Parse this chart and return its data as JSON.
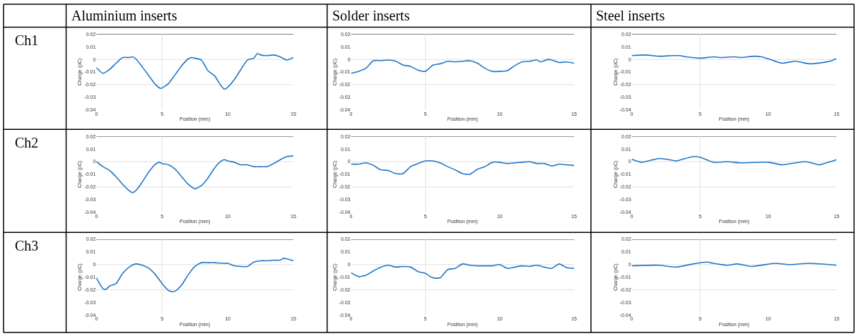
{
  "chart_data": [
    {
      "type": "line",
      "title": "Aluminium inserts",
      "annotations": [
        "Ch1"
      ],
      "xlabel": "Position (mm)",
      "ylabel": "Charge (pC)",
      "xlim": [
        0,
        15
      ],
      "ylim": [
        -0.04,
        0.02
      ],
      "xticks": [
        0,
        5,
        10,
        15
      ],
      "yticks": [
        0.02,
        0.01,
        0,
        -0.01,
        -0.02,
        -0.03,
        -0.04
      ],
      "grid": false,
      "ref_lines": [
        {
          "axis": "y",
          "value": 0.02,
          "color": "#333333"
        },
        {
          "axis": "y",
          "value": 0,
          "color": "#e0e0e0"
        },
        {
          "axis": "y",
          "value": -0.02,
          "color": "#e0e0e0"
        },
        {
          "axis": "x",
          "value": 5,
          "color": "#e0e0e0"
        }
      ],
      "series": [
        {
          "color": "#1f77c8",
          "x": [
            0,
            0.5,
            1,
            1.5,
            2,
            2.5,
            2.75,
            3,
            3.5,
            4,
            4.5,
            4.9,
            5.5,
            6,
            6.5,
            7,
            7.25,
            7.5,
            8,
            8.5,
            9,
            9.5,
            9.75,
            10,
            10.5,
            11,
            11.5,
            12,
            12.25,
            12.5,
            13,
            13.5,
            14,
            14.5,
            15
          ],
          "values": [
            -0.0065,
            -0.011,
            -0.008,
            -0.003,
            0.0015,
            0.0015,
            0.002,
            0.0005,
            -0.006,
            -0.013,
            -0.02,
            -0.023,
            -0.019,
            -0.012,
            -0.005,
            0.0005,
            0.0015,
            0.001,
            -0.0005,
            -0.009,
            -0.013,
            -0.021,
            -0.0235,
            -0.022,
            -0.016,
            -0.008,
            -0.0005,
            0.001,
            0.0045,
            0.0035,
            0.003,
            0.0035,
            0.002,
            -0.0005,
            0.0015
          ]
        }
      ]
    },
    {
      "type": "line",
      "title": "Solder inserts",
      "xlabel": "Position (mm)",
      "ylabel": "Charge (pC)",
      "xlim": [
        0,
        15
      ],
      "ylim": [
        -0.04,
        0.02
      ],
      "xticks": [
        0,
        5,
        10,
        15
      ],
      "yticks": [
        0.02,
        0.01,
        0,
        -0.01,
        -0.02,
        -0.03,
        -0.04
      ],
      "grid": false,
      "ref_lines": [
        {
          "axis": "y",
          "value": 0.02,
          "color": "#333333"
        },
        {
          "axis": "y",
          "value": 0,
          "color": "#e0e0e0"
        },
        {
          "axis": "y",
          "value": -0.02,
          "color": "#e0e0e0"
        },
        {
          "axis": "x",
          "value": 5,
          "color": "#e0e0e0"
        }
      ],
      "series": [
        {
          "color": "#1f77c8",
          "x": [
            0,
            0.5,
            1,
            1.5,
            2,
            2.5,
            3,
            3.5,
            4,
            4.5,
            5,
            5.5,
            6,
            6.5,
            7,
            7.5,
            8,
            8.5,
            9,
            9.5,
            10,
            10.5,
            11,
            11.5,
            12,
            12.5,
            12.75,
            13.25,
            13.5,
            14,
            14.5,
            15
          ],
          "values": [
            -0.011,
            -0.0095,
            -0.007,
            -0.001,
            -0.001,
            -0.0005,
            -0.0015,
            -0.0045,
            -0.0055,
            -0.0085,
            -0.0095,
            -0.0045,
            -0.0035,
            -0.0015,
            -0.002,
            -0.0015,
            -0.001,
            -0.003,
            -0.007,
            -0.0095,
            -0.0095,
            -0.009,
            -0.005,
            -0.002,
            -0.0015,
            -0.0005,
            -0.002,
            0,
            -0.0005,
            -0.0025,
            -0.002,
            -0.003
          ]
        }
      ]
    },
    {
      "type": "line",
      "title": "Steel inserts",
      "xlabel": "Position (mm)",
      "ylabel": "Charge (pC)",
      "xlim": [
        0,
        15
      ],
      "ylim": [
        -0.04,
        0.02
      ],
      "xticks": [
        0,
        5,
        10,
        15
      ],
      "yticks": [
        0.02,
        0.01,
        0,
        -0.01,
        -0.02,
        -0.03,
        -0.04
      ],
      "grid": false,
      "ref_lines": [
        {
          "axis": "y",
          "value": 0.02,
          "color": "#333333"
        },
        {
          "axis": "y",
          "value": 0,
          "color": "#e0e0e0"
        },
        {
          "axis": "y",
          "value": -0.02,
          "color": "#e0e0e0"
        },
        {
          "axis": "x",
          "value": 5,
          "color": "#e0e0e0"
        }
      ],
      "series": [
        {
          "color": "#1f77c8",
          "x": [
            0,
            1,
            2,
            3,
            3.5,
            4,
            5,
            6,
            6.5,
            7.5,
            8,
            9,
            9.5,
            10,
            11,
            12,
            13,
            14,
            14.5,
            15
          ],
          "values": [
            0.003,
            0.0035,
            0.0025,
            0.003,
            0.003,
            0.002,
            0.001,
            0.002,
            0.0015,
            0.002,
            0.0015,
            0.0025,
            0.002,
            0.0005,
            -0.003,
            -0.0015,
            -0.0035,
            -0.0025,
            -0.0015,
            0.0005
          ]
        }
      ]
    },
    {
      "type": "line",
      "annotations": [
        "Ch2"
      ],
      "xlabel": "Position (mm)",
      "ylabel": "Charge (pC)",
      "xlim": [
        0,
        15
      ],
      "ylim": [
        -0.04,
        0.02
      ],
      "xticks": [
        0,
        5,
        10,
        15
      ],
      "yticks": [
        0.02,
        0.01,
        0,
        -0.01,
        -0.02,
        -0.03,
        -0.04
      ],
      "grid": false,
      "ref_lines": [
        {
          "axis": "y",
          "value": 0.02,
          "color": "#333333"
        },
        {
          "axis": "y",
          "value": 0,
          "color": "#e0e0e0"
        },
        {
          "axis": "y",
          "value": -0.02,
          "color": "#e0e0e0"
        },
        {
          "axis": "x",
          "value": 5,
          "color": "#e0e0e0"
        }
      ],
      "series": [
        {
          "color": "#1f77c8",
          "x": [
            0,
            0.5,
            1,
            1.5,
            2,
            2.5,
            2.75,
            3,
            3.5,
            4,
            4.5,
            4.8,
            5,
            5.5,
            6,
            6.5,
            7,
            7.5,
            8,
            8.5,
            9,
            9.5,
            9.75,
            10,
            10.5,
            11,
            11.5,
            12,
            12.5,
            13,
            13.5,
            14,
            14.5,
            15
          ],
          "values": [
            0,
            -0.004,
            -0.007,
            -0.012,
            -0.018,
            -0.023,
            -0.0245,
            -0.023,
            -0.016,
            -0.008,
            -0.002,
            -0.0005,
            -0.0015,
            -0.0025,
            -0.006,
            -0.012,
            -0.018,
            -0.0215,
            -0.019,
            -0.013,
            -0.005,
            0.0005,
            0.0015,
            0.0005,
            -0.0005,
            -0.0025,
            -0.0025,
            -0.004,
            -0.004,
            -0.004,
            -0.0015,
            0.0015,
            0.004,
            0.0045
          ]
        }
      ]
    },
    {
      "type": "line",
      "xlabel": "Position (mm)",
      "ylabel": "Charge (pC)",
      "xlim": [
        0,
        15
      ],
      "ylim": [
        -0.04,
        0.02
      ],
      "xticks": [
        0,
        5,
        10,
        15
      ],
      "yticks": [
        0.02,
        0.01,
        0,
        -0.01,
        -0.02,
        -0.03,
        -0.04
      ],
      "grid": false,
      "ref_lines": [
        {
          "axis": "y",
          "value": 0.02,
          "color": "#333333"
        },
        {
          "axis": "y",
          "value": 0,
          "color": "#e0e0e0"
        },
        {
          "axis": "y",
          "value": -0.02,
          "color": "#e0e0e0"
        },
        {
          "axis": "x",
          "value": 5,
          "color": "#e0e0e0"
        }
      ],
      "series": [
        {
          "color": "#1f77c8",
          "x": [
            0,
            0.5,
            1,
            1.5,
            2,
            2.5,
            3,
            3.5,
            4,
            4.5,
            5,
            5.5,
            6,
            6.5,
            7,
            7.5,
            8,
            8.5,
            9,
            9.5,
            10,
            10.5,
            11,
            11.5,
            12,
            12.5,
            13,
            13.5,
            14,
            14.5,
            15
          ],
          "values": [
            -0.002,
            -0.002,
            -0.001,
            -0.003,
            -0.0065,
            -0.007,
            -0.0095,
            -0.0095,
            -0.004,
            -0.0015,
            0.0005,
            0.0005,
            -0.001,
            -0.004,
            -0.0065,
            -0.0095,
            -0.01,
            -0.006,
            -0.004,
            -0.0005,
            -0.0005,
            -0.0015,
            -0.001,
            -0.0005,
            0,
            -0.0015,
            -0.0015,
            -0.0035,
            -0.002,
            -0.0025,
            -0.003
          ]
        }
      ]
    },
    {
      "type": "line",
      "xlabel": "Position (mm)",
      "ylabel": "Charge (pC)",
      "xlim": [
        0,
        15
      ],
      "ylim": [
        -0.04,
        0.02
      ],
      "xticks": [
        0,
        5,
        10,
        15
      ],
      "yticks": [
        0.02,
        0.01,
        0,
        -0.01,
        -0.02,
        -0.03,
        -0.04
      ],
      "grid": false,
      "ref_lines": [
        {
          "axis": "y",
          "value": 0.02,
          "color": "#333333"
        },
        {
          "axis": "y",
          "value": 0,
          "color": "#e0e0e0"
        },
        {
          "axis": "y",
          "value": -0.02,
          "color": "#e0e0e0"
        },
        {
          "axis": "x",
          "value": 5,
          "color": "#e0e0e0"
        }
      ],
      "series": [
        {
          "color": "#1f77c8",
          "x": [
            0,
            0.75,
            2,
            3,
            3.25,
            4.5,
            5,
            6,
            7,
            8,
            10,
            11,
            12,
            12.75,
            13.5,
            13.75,
            15
          ],
          "values": [
            0.002,
            -0.0005,
            0.0025,
            0.001,
            0.0005,
            0.004,
            0.0035,
            -0.0005,
            0,
            -0.001,
            -0.0005,
            -0.0025,
            -0.001,
            0,
            -0.002,
            -0.0025,
            0.0015
          ]
        }
      ]
    },
    {
      "type": "line",
      "annotations": [
        "Ch3"
      ],
      "xlabel": "Position (mm)",
      "ylabel": "Charge (pC)",
      "xlim": [
        0,
        15
      ],
      "ylim": [
        -0.04,
        0.02
      ],
      "xticks": [
        0,
        5,
        10,
        15
      ],
      "yticks": [
        0.02,
        0.01,
        0,
        -0.01,
        -0.02,
        -0.03,
        -0.04
      ],
      "grid": false,
      "ref_lines": [
        {
          "axis": "y",
          "value": 0.02,
          "color": "#333333"
        },
        {
          "axis": "y",
          "value": 0,
          "color": "#e0e0e0"
        },
        {
          "axis": "y",
          "value": -0.02,
          "color": "#e0e0e0"
        },
        {
          "axis": "x",
          "value": 5,
          "color": "#e0e0e0"
        }
      ],
      "series": [
        {
          "color": "#1f77c8",
          "x": [
            0,
            0.5,
            0.75,
            1,
            1.5,
            2,
            2.5,
            3,
            3.5,
            4,
            4.5,
            5,
            5.5,
            5.75,
            6,
            6.5,
            7,
            7.5,
            8,
            8.5,
            9,
            9.5,
            10,
            10.5,
            11,
            11.5,
            12,
            12.5,
            13,
            13.5,
            14,
            14.25,
            14.5,
            15
          ],
          "values": [
            -0.0105,
            -0.019,
            -0.0195,
            -0.017,
            -0.015,
            -0.007,
            -0.002,
            0.0005,
            -0.0005,
            -0.003,
            -0.008,
            -0.015,
            -0.0205,
            -0.0215,
            -0.021,
            -0.016,
            -0.008,
            -0.0015,
            0.0015,
            0.0015,
            0.0015,
            0.001,
            0.001,
            -0.001,
            -0.0015,
            -0.0015,
            0.002,
            0.003,
            0.003,
            0.0035,
            0.0035,
            0.005,
            0.0045,
            0.003
          ]
        }
      ]
    },
    {
      "type": "line",
      "xlabel": "Position (mm)",
      "ylabel": "Charge (pC)",
      "xlim": [
        0,
        15
      ],
      "ylim": [
        -0.04,
        0.02
      ],
      "xticks": [
        0,
        5,
        10,
        15
      ],
      "yticks": [
        0.02,
        0.01,
        0,
        -0.01,
        -0.02,
        -0.03,
        -0.04
      ],
      "grid": false,
      "ref_lines": [
        {
          "axis": "y",
          "value": 0.02,
          "color": "#333333"
        },
        {
          "axis": "y",
          "value": 0,
          "color": "#e0e0e0"
        },
        {
          "axis": "y",
          "value": -0.02,
          "color": "#e0e0e0"
        },
        {
          "axis": "x",
          "value": 5,
          "color": "#e0e0e0"
        }
      ],
      "series": [
        {
          "color": "#1f77c8",
          "x": [
            0,
            0.5,
            1,
            1.5,
            2,
            2.5,
            3,
            3.5,
            4,
            4.5,
            5,
            5.5,
            6,
            6.5,
            7,
            7.5,
            8,
            8.5,
            9,
            9.5,
            10,
            10.5,
            11,
            11.5,
            12,
            12.5,
            13,
            13.5,
            14,
            14.5,
            15
          ],
          "values": [
            -0.0065,
            -0.0095,
            -0.0085,
            -0.005,
            -0.002,
            -0.0005,
            -0.002,
            -0.0015,
            -0.002,
            -0.0055,
            -0.007,
            -0.0105,
            -0.0105,
            -0.004,
            -0.003,
            0.0005,
            -0.0005,
            -0.001,
            -0.001,
            -0.001,
            0,
            -0.003,
            -0.002,
            -0.001,
            -0.0015,
            -0.0005,
            -0.002,
            -0.003,
            0.0005,
            -0.0025,
            -0.003
          ]
        }
      ]
    },
    {
      "type": "line",
      "xlabel": "Position (mm)",
      "ylabel": "Charge (pC)",
      "xlim": [
        0,
        15
      ],
      "ylim": [
        -0.04,
        0.02
      ],
      "xticks": [
        0,
        5,
        10,
        15
      ],
      "yticks": [
        0.02,
        0.01,
        0,
        -0.01,
        -0.02,
        -0.03,
        -0.04
      ],
      "grid": false,
      "ref_lines": [
        {
          "axis": "y",
          "value": 0.02,
          "color": "#333333"
        },
        {
          "axis": "y",
          "value": 0,
          "color": "#e0e0e0"
        },
        {
          "axis": "y",
          "value": -0.02,
          "color": "#e0e0e0"
        },
        {
          "axis": "x",
          "value": 5,
          "color": "#e0e0e0"
        }
      ],
      "series": [
        {
          "color": "#1f77c8",
          "x": [
            0,
            2,
            3.25,
            4.5,
            5.5,
            6,
            7,
            7.75,
            8.75,
            10.5,
            11.5,
            13,
            15
          ],
          "values": [
            -0.001,
            -0.0005,
            -0.002,
            0.0005,
            0.002,
            0.001,
            -0.0005,
            0.0005,
            -0.0015,
            0.001,
            0,
            0.001,
            -0.0005
          ]
        }
      ]
    }
  ]
}
